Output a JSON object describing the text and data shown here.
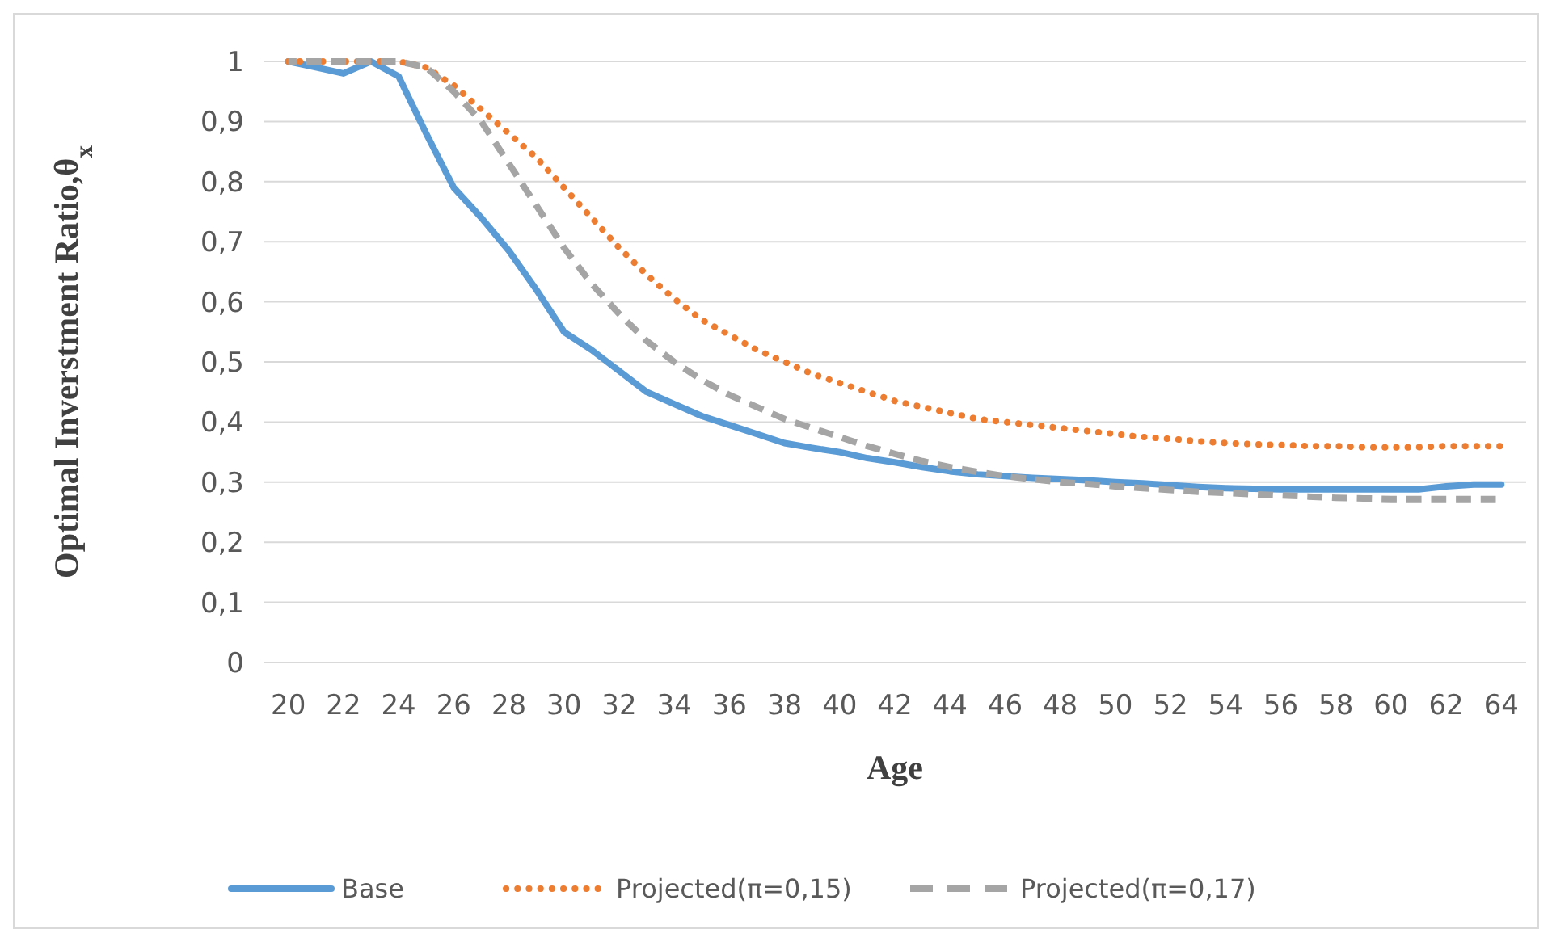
{
  "chart_data": {
    "type": "line",
    "xlabel": "Age",
    "ylabel": "Optimal Inverstment Ratio,θ$_{x}$",
    "x": [
      20,
      21,
      22,
      23,
      24,
      25,
      26,
      27,
      28,
      29,
      30,
      31,
      32,
      33,
      34,
      35,
      36,
      37,
      38,
      39,
      40,
      41,
      42,
      43,
      44,
      45,
      46,
      47,
      48,
      49,
      50,
      51,
      52,
      53,
      54,
      55,
      56,
      57,
      58,
      59,
      60,
      61,
      62,
      63,
      64
    ],
    "xlim": [
      19.1,
      64.9
    ],
    "xticks": [
      20,
      22,
      24,
      26,
      28,
      30,
      32,
      34,
      36,
      38,
      40,
      42,
      44,
      46,
      48,
      50,
      52,
      54,
      56,
      58,
      60,
      62,
      64
    ],
    "ylim": [
      0,
      1
    ],
    "yticks": [
      0,
      {
        "value": 0.1,
        "label": "0,1"
      },
      {
        "value": 0.2,
        "label": "0,2"
      },
      {
        "value": 0.3,
        "label": "0,3"
      },
      {
        "value": 0.4,
        "label": "0,4"
      },
      {
        "value": 0.5,
        "label": "0,5"
      },
      {
        "value": 0.6,
        "label": "0,6"
      },
      {
        "value": 0.7,
        "label": "0,7"
      },
      {
        "value": 0.8,
        "label": "0,8"
      },
      {
        "value": 0.9,
        "label": "0,9"
      },
      1
    ],
    "grid": "y",
    "legend": "bottom",
    "marker": "none",
    "series": [
      {
        "name": "Base",
        "color": "#5b9bd5",
        "line_style": "solid",
        "values": [
          1,
          0.99,
          0.98,
          1,
          0.975,
          0.88,
          0.79,
          0.74,
          0.685,
          0.62,
          0.55,
          0.52,
          0.485,
          0.45,
          0.43,
          0.41,
          0.395,
          0.38,
          0.365,
          0.357,
          0.35,
          0.34,
          0.333,
          0.325,
          0.318,
          0.313,
          0.31,
          0.307,
          0.305,
          0.303,
          0.3,
          0.298,
          0.295,
          0.292,
          0.29,
          0.289,
          0.288,
          0.288,
          0.288,
          0.288,
          0.288,
          0.288,
          0.293,
          0.296,
          0.296
        ]
      },
      {
        "name": "Projected(π=0,15)",
        "color": "#ed7d31",
        "line_style": "dotted",
        "values": [
          1,
          1,
          1,
          1,
          1,
          0.99,
          0.96,
          0.92,
          0.88,
          0.84,
          0.79,
          0.74,
          0.69,
          0.645,
          0.605,
          0.57,
          0.545,
          0.52,
          0.5,
          0.48,
          0.465,
          0.45,
          0.435,
          0.425,
          0.415,
          0.405,
          0.4,
          0.395,
          0.39,
          0.385,
          0.38,
          0.375,
          0.372,
          0.368,
          0.365,
          0.363,
          0.362,
          0.36,
          0.36,
          0.358,
          0.358,
          0.358,
          0.36,
          0.36,
          0.36
        ]
      },
      {
        "name": "Projected(π=0,17)",
        "color": "#a5a5a5",
        "line_style": "dashed",
        "values": [
          1,
          1,
          1,
          1,
          1,
          0.99,
          0.95,
          0.9,
          0.83,
          0.76,
          0.69,
          0.63,
          0.58,
          0.535,
          0.5,
          0.47,
          0.445,
          0.425,
          0.405,
          0.39,
          0.375,
          0.36,
          0.347,
          0.335,
          0.325,
          0.317,
          0.31,
          0.305,
          0.3,
          0.297,
          0.293,
          0.29,
          0.287,
          0.284,
          0.282,
          0.28,
          0.278,
          0.276,
          0.274,
          0.273,
          0.272,
          0.272,
          0.272,
          0.272,
          0.272
        ]
      }
    ]
  }
}
